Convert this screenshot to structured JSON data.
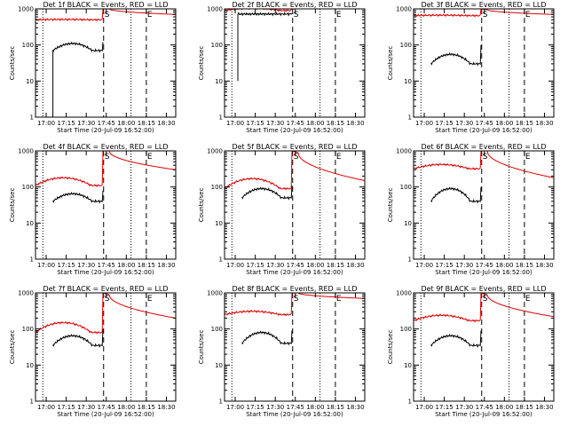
{
  "figure": {
    "series_names": [
      "BLACK = Events",
      "RED = LLD"
    ],
    "colors": {
      "events": "#000000",
      "lld": "#e00000",
      "axis": "#000000"
    },
    "chart_data": [
      {
        "type": "line",
        "title": "Det 1f BLACK = Events, RED = LLD",
        "xlabel": "Start Time (20-Jul-09 16:52:00)",
        "ylabel": "Counts/sec",
        "x_ticks": [
          "17:00",
          "17:15",
          "17:30",
          "17:45",
          "18:00",
          "18:15",
          "18:30"
        ],
        "y_ticks": [
          "1",
          "10",
          "100",
          "1000"
        ],
        "ylim": [
          1,
          1000
        ],
        "yscale": "log",
        "xlim_minutes": [
          0,
          105
        ],
        "markers": [
          {
            "label": "S",
            "minute": 51
          },
          {
            "label": "E",
            "minute": 83
          }
        ],
        "dotted_minutes": [
          5.5,
          71.5
        ],
        "dashed_minutes": [
          51,
          83
        ],
        "events": {
          "start_minute": 13,
          "start_value": 70,
          "base": 70,
          "bump": 40,
          "pre_spike": 120,
          "end_minute": 51,
          "floor_before": 1
        },
        "lld": {
          "start_minute": 0,
          "base": 500,
          "bump": 10,
          "spike": 1000,
          "post_start": 1000,
          "post_end": 700,
          "end_minute": 105
        }
      },
      {
        "type": "line",
        "title": "Det 2f BLACK = Events, RED = LLD",
        "xlabel": "Start Time (20-Jul-09 16:52:00)",
        "ylabel": "Counts/sec",
        "x_ticks": [
          "17:00",
          "17:15",
          "17:30",
          "17:45",
          "18:00",
          "18:15",
          "18:30"
        ],
        "y_ticks": [
          "1",
          "10",
          "100",
          "1000"
        ],
        "ylim": [
          1,
          1000
        ],
        "yscale": "log",
        "xlim_minutes": [
          0,
          105
        ],
        "markers": [
          {
            "label": "S",
            "minute": 51
          },
          {
            "label": "E",
            "minute": 83
          }
        ],
        "dotted_minutes": [
          5.5,
          71.5
        ],
        "dashed_minutes": [
          51,
          83
        ],
        "events": {
          "start_minute": 10,
          "start_value": 700,
          "base": 720,
          "bump": 0,
          "pre_spike": 750,
          "end_minute": 51,
          "floor_before": 10
        },
        "lld": {
          "start_minute": 0,
          "base": 900,
          "bump": 150,
          "spike": 1000,
          "post_start": 1300,
          "post_end": 1000,
          "end_minute": 105
        }
      },
      {
        "type": "line",
        "title": "Det 3f BLACK = Events, RED = LLD",
        "xlabel": "Start Time (20-Jul-09 16:52:00)",
        "ylabel": "Counts/sec",
        "x_ticks": [
          "17:00",
          "17:15",
          "17:30",
          "17:45",
          "18:00",
          "18:15",
          "18:30"
        ],
        "y_ticks": [
          "1",
          "10",
          "100",
          "1000"
        ],
        "ylim": [
          1,
          1000
        ],
        "yscale": "log",
        "xlim_minutes": [
          0,
          105
        ],
        "markers": [
          {
            "label": "S",
            "minute": 51
          },
          {
            "label": "E",
            "minute": 83
          }
        ],
        "dotted_minutes": [
          5.5,
          71.5
        ],
        "dashed_minutes": [
          51,
          83
        ],
        "events": {
          "start_minute": 13,
          "start_value": 30,
          "base": 30,
          "bump": 25,
          "pre_spike": 100,
          "end_minute": 51,
          "floor_before": null
        },
        "lld": {
          "start_minute": 0,
          "base": 650,
          "bump": 20,
          "spike": 1000,
          "post_start": 950,
          "post_end": 700,
          "end_minute": 105
        }
      },
      {
        "type": "line",
        "title": "Det 4f BLACK = Events, RED = LLD",
        "xlabel": "Start Time (20-Jul-09 16:52:00)",
        "ylabel": "Counts/sec",
        "x_ticks": [
          "17:00",
          "17:15",
          "17:30",
          "17:45",
          "18:00",
          "18:15",
          "18:30"
        ],
        "y_ticks": [
          "1",
          "10",
          "100",
          "1000"
        ],
        "ylim": [
          1,
          1000
        ],
        "yscale": "log",
        "xlim_minutes": [
          0,
          105
        ],
        "markers": [
          {
            "label": "S",
            "minute": 51
          },
          {
            "label": "E",
            "minute": 83
          }
        ],
        "dotted_minutes": [
          5.5,
          71.5
        ],
        "dashed_minutes": [
          51,
          83
        ],
        "events": {
          "start_minute": 13,
          "start_value": 40,
          "base": 40,
          "bump": 25,
          "pre_spike": 80,
          "end_minute": 51,
          "floor_before": null
        },
        "lld": {
          "start_minute": 0,
          "base": 110,
          "bump": 70,
          "spike": 1000,
          "post_start": 1000,
          "post_end": 300,
          "end_minute": 105
        }
      },
      {
        "type": "line",
        "title": "Det 5f BLACK = Events, RED = LLD",
        "xlabel": "Start Time (20-Jul-09 16:52:00)",
        "ylabel": "Counts/sec",
        "x_ticks": [
          "17:00",
          "17:15",
          "17:30",
          "17:45",
          "18:00",
          "18:15",
          "18:30"
        ],
        "y_ticks": [
          "1",
          "10",
          "100",
          "1000"
        ],
        "ylim": [
          1,
          1000
        ],
        "yscale": "log",
        "xlim_minutes": [
          0,
          105
        ],
        "markers": [
          {
            "label": "S",
            "minute": 51
          },
          {
            "label": "E",
            "minute": 83
          }
        ],
        "dotted_minutes": [
          5.5,
          71.5
        ],
        "dashed_minutes": [
          51,
          83
        ],
        "events": {
          "start_minute": 13,
          "start_value": 50,
          "base": 50,
          "bump": 40,
          "pre_spike": 110,
          "end_minute": 51,
          "floor_before": null
        },
        "lld": {
          "start_minute": 0,
          "base": 90,
          "bump": 80,
          "spike": 1000,
          "post_start": 900,
          "post_end": 150,
          "end_minute": 105
        }
      },
      {
        "type": "line",
        "title": "Det 6f BLACK = Events, RED = LLD",
        "xlabel": "Start Time (20-Jul-09 16:52:00)",
        "ylabel": "Counts/sec",
        "x_ticks": [
          "17:00",
          "17:15",
          "17:30",
          "17:45",
          "18:00",
          "18:15",
          "18:30"
        ],
        "y_ticks": [
          "1",
          "10",
          "100",
          "1000"
        ],
        "ylim": [
          1,
          1000
        ],
        "yscale": "log",
        "xlim_minutes": [
          0,
          105
        ],
        "markers": [
          {
            "label": "S",
            "minute": 51
          },
          {
            "label": "E",
            "minute": 83
          }
        ],
        "dotted_minutes": [
          5.5,
          71.5
        ],
        "dashed_minutes": [
          51,
          83
        ],
        "events": {
          "start_minute": 13,
          "start_value": 40,
          "base": 40,
          "bump": 50,
          "pre_spike": 100,
          "end_minute": 51,
          "floor_before": null
        },
        "lld": {
          "start_minute": 0,
          "base": 320,
          "bump": 100,
          "spike": 1000,
          "post_start": 1000,
          "post_end": 180,
          "end_minute": 105
        }
      },
      {
        "type": "line",
        "title": "Det 7f BLACK = Events, RED = LLD",
        "xlabel": "Start Time (20-Jul-09 16:52:00)",
        "ylabel": "Counts/sec",
        "x_ticks": [
          "17:00",
          "17:15",
          "17:30",
          "17:45",
          "18:00",
          "18:15",
          "18:30"
        ],
        "y_ticks": [
          "1",
          "10",
          "100",
          "1000"
        ],
        "ylim": [
          1,
          1000
        ],
        "yscale": "log",
        "xlim_minutes": [
          0,
          105
        ],
        "markers": [
          {
            "label": "S",
            "minute": 51
          },
          {
            "label": "E",
            "minute": 83
          }
        ],
        "dotted_minutes": [
          5.5,
          71.5
        ],
        "dashed_minutes": [
          51,
          83
        ],
        "events": {
          "start_minute": 13,
          "start_value": 35,
          "base": 35,
          "bump": 30,
          "pre_spike": 100,
          "end_minute": 51,
          "floor_before": null
        },
        "lld": {
          "start_minute": 0,
          "base": 80,
          "bump": 70,
          "spike": 1000,
          "post_start": 900,
          "post_end": 200,
          "end_minute": 105
        }
      },
      {
        "type": "line",
        "title": "Det 8f BLACK = Events, RED = LLD",
        "xlabel": "Start Time (20-Jul-09 16:52:00)",
        "ylabel": "Counts/sec",
        "x_ticks": [
          "17:00",
          "17:15",
          "17:30",
          "17:45",
          "18:00",
          "18:15",
          "18:30"
        ],
        "y_ticks": [
          "1",
          "10",
          "100",
          "1000"
        ],
        "ylim": [
          1,
          1000
        ],
        "yscale": "log",
        "xlim_minutes": [
          0,
          105
        ],
        "markers": [
          {
            "label": "S",
            "minute": 51
          },
          {
            "label": "E",
            "minute": 83
          }
        ],
        "dotted_minutes": [
          5.5,
          71.5
        ],
        "dashed_minutes": [
          51,
          83
        ],
        "events": {
          "start_minute": 13,
          "start_value": 40,
          "base": 40,
          "bump": 40,
          "pre_spike": 90,
          "end_minute": 51,
          "floor_before": null
        },
        "lld": {
          "start_minute": 0,
          "base": 250,
          "bump": 60,
          "spike": 1000,
          "post_start": 1000,
          "post_end": 700,
          "end_minute": 105
        }
      },
      {
        "type": "line",
        "title": "Det 9f BLACK = Events, RED = LLD",
        "xlabel": "Start Time (20-Jul-09 16:52:00)",
        "ylabel": "Counts/sec",
        "x_ticks": [
          "17:00",
          "17:15",
          "17:30",
          "17:45",
          "18:00",
          "18:15",
          "18:30"
        ],
        "y_ticks": [
          "1",
          "10",
          "100",
          "1000"
        ],
        "ylim": [
          1,
          1000
        ],
        "yscale": "log",
        "xlim_minutes": [
          0,
          105
        ],
        "markers": [
          {
            "label": "S",
            "minute": 51
          },
          {
            "label": "E",
            "minute": 83
          }
        ],
        "dotted_minutes": [
          5.5,
          71.5
        ],
        "dashed_minutes": [
          51,
          83
        ],
        "events": {
          "start_minute": 13,
          "start_value": 35,
          "base": 35,
          "bump": 30,
          "pre_spike": 90,
          "end_minute": 51,
          "floor_before": null
        },
        "lld": {
          "start_minute": 0,
          "base": 170,
          "bump": 70,
          "spike": 1000,
          "post_start": 900,
          "post_end": 220,
          "end_minute": 105
        }
      }
    ]
  }
}
